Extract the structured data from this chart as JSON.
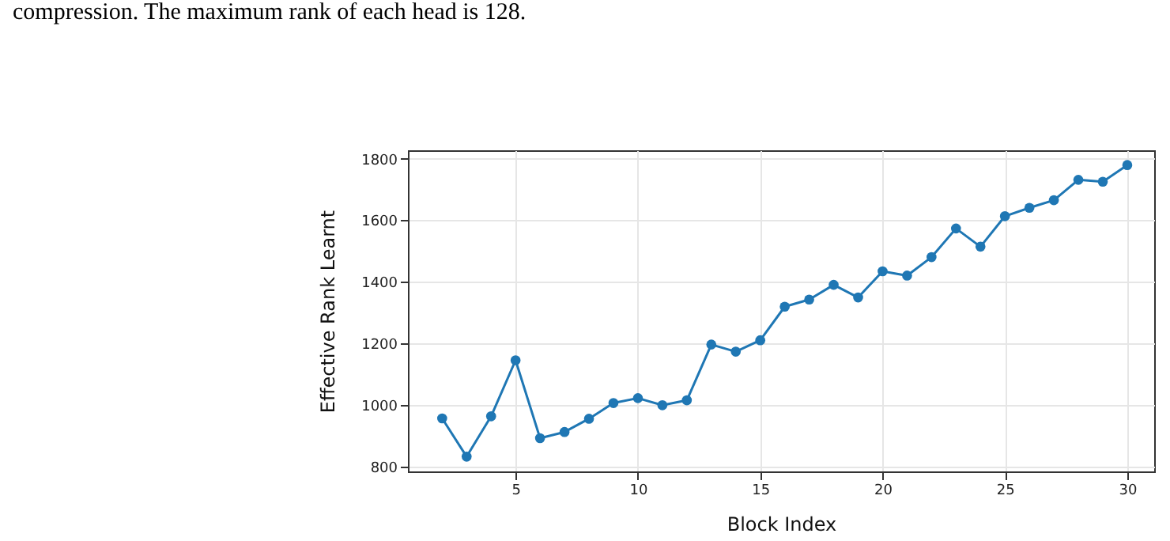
{
  "chart_data": {
    "type": "line",
    "xlabel": "Block Index",
    "ylabel": "Effective Rank Learnt",
    "annotations": [
      "compression. The maximum rank of each head is 128."
    ],
    "x": [
      2,
      3,
      4,
      5,
      6,
      7,
      8,
      9,
      10,
      11,
      12,
      13,
      14,
      15,
      16,
      17,
      18,
      19,
      20,
      21,
      22,
      23,
      24,
      25,
      26,
      27,
      28,
      29,
      30
    ],
    "series": [
      {
        "color": "#1f77b4",
        "values": [
          956,
          832,
          963,
          1145,
          892,
          912,
          955,
          1006,
          1022,
          999,
          1015,
          1196,
          1173,
          1210,
          1319,
          1342,
          1390,
          1349,
          1434,
          1420,
          1480,
          1573,
          1514,
          1613,
          1640,
          1665,
          1731,
          1725,
          1779
        ]
      }
    ],
    "xlim": [
      0.6,
      31.1
    ],
    "ylim": [
      784,
      1827
    ],
    "xticks": [
      5,
      10,
      15,
      20,
      25,
      30
    ],
    "yticks": [
      800,
      1000,
      1200,
      1400,
      1600,
      1800
    ],
    "grid": true,
    "marker": "circle",
    "line_style": "solid",
    "legend": false
  }
}
